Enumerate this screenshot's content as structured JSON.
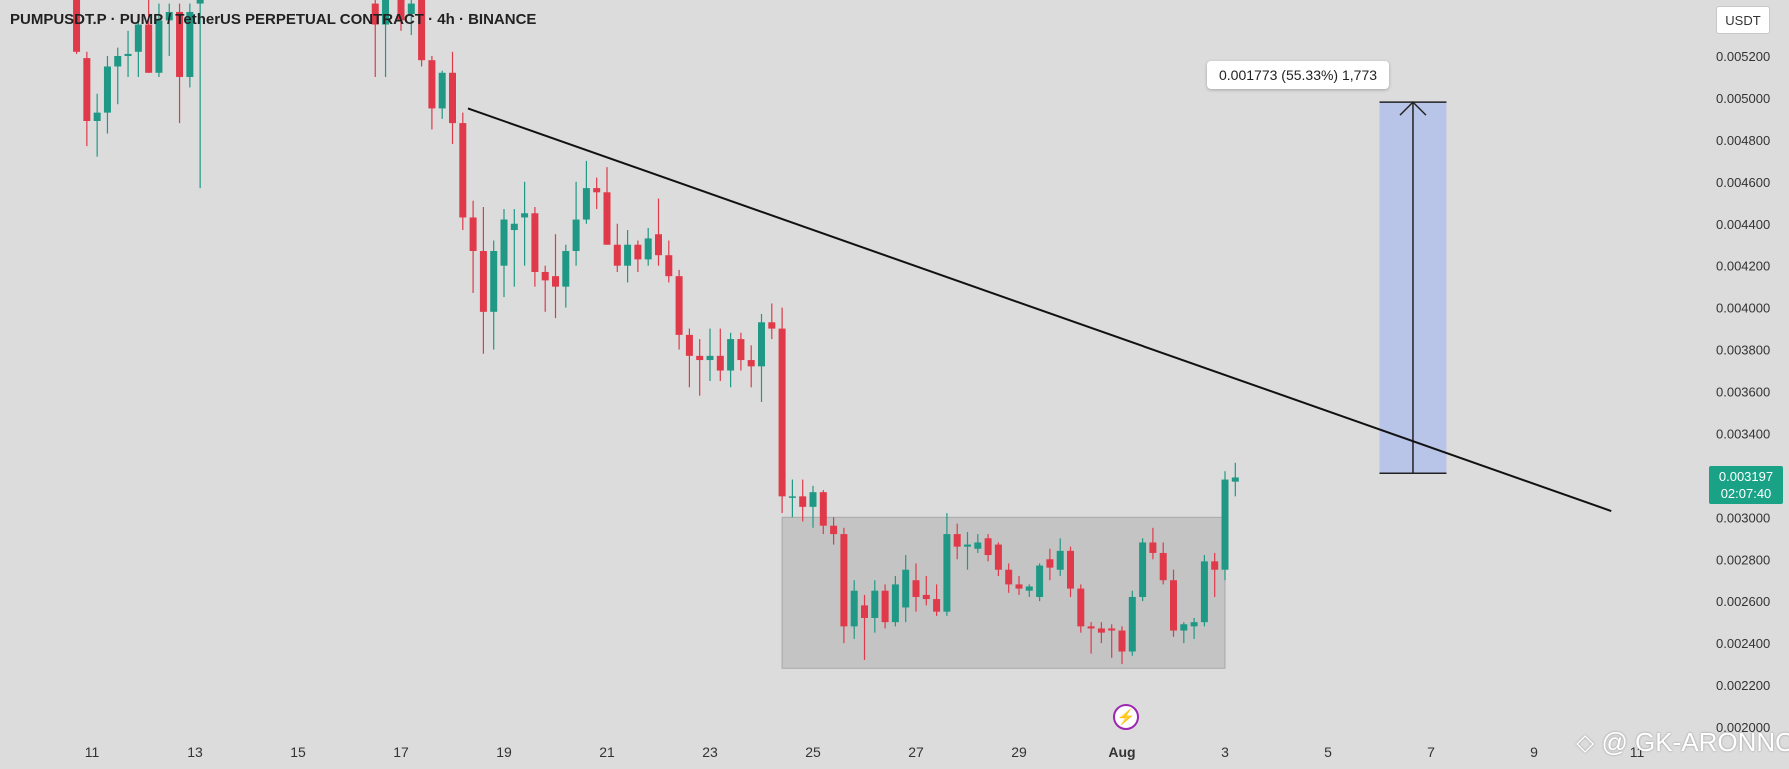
{
  "header": {
    "symbol_line": "PUMPUSDT.P · PUMP / TetherUS PERPETUAL CONTRACT · 4h · BINANCE"
  },
  "currency_button": "USDT",
  "price_tag": {
    "price": "0.003197",
    "countdown": "02:07:40"
  },
  "measure_label": "0.001773 (55.33%) 1,773",
  "watermark": "@ GK-ARONNO",
  "colors": {
    "bull": "#1f9985",
    "bear": "#e0394a",
    "background": "#dcdcdc",
    "range_box": "#c4c4c4",
    "target_box": "#b8c4e8",
    "price_tag": "#1aa287",
    "indicator_icon": "#9c27b0"
  },
  "icons": {
    "indicator": "lightning-bolt-icon",
    "watermark_logo": "binance-square-icon"
  },
  "chart_data": {
    "type": "candlestick",
    "title": "PUMPUSDT.P · PUMP / TetherUS PERPETUAL CONTRACT · 4h · BINANCE",
    "y_ticks": [
      "0.005200",
      "0.005000",
      "0.004800",
      "0.004600",
      "0.004400",
      "0.004200",
      "0.004000",
      "0.003800",
      "0.003600",
      "0.003400",
      "0.003000",
      "0.002800",
      "0.002600",
      "0.002400",
      "0.002200",
      "0.002000"
    ],
    "ylim": [
      0.002,
      0.00535
    ],
    "x_ticks": [
      "11",
      "13",
      "15",
      "17",
      "19",
      "21",
      "23",
      "25",
      "27",
      "29",
      "Aug",
      "3",
      "5",
      "7",
      "9",
      "11"
    ],
    "x_tick_days": [
      11,
      13,
      15,
      17,
      19,
      21,
      23,
      25,
      27,
      29,
      31,
      33,
      35,
      37,
      39,
      41
    ],
    "candles": [
      {
        "d": 10.7,
        "o": 0.00548,
        "h": 0.00556,
        "l": 0.00521,
        "c": 0.00522
      },
      {
        "d": 10.9,
        "o": 0.00519,
        "h": 0.00522,
        "l": 0.00477,
        "c": 0.00489
      },
      {
        "d": 11.1,
        "o": 0.00489,
        "h": 0.00502,
        "l": 0.00472,
        "c": 0.00493
      },
      {
        "d": 11.3,
        "o": 0.00493,
        "h": 0.0052,
        "l": 0.00483,
        "c": 0.00515
      },
      {
        "d": 11.5,
        "o": 0.00515,
        "h": 0.00524,
        "l": 0.00497,
        "c": 0.0052
      },
      {
        "d": 11.7,
        "o": 0.0052,
        "h": 0.00532,
        "l": 0.0051,
        "c": 0.00521
      },
      {
        "d": 11.9,
        "o": 0.00522,
        "h": 0.0054,
        "l": 0.0051,
        "c": 0.00535
      },
      {
        "d": 12.1,
        "o": 0.00535,
        "h": 0.00548,
        "l": 0.00512,
        "c": 0.00512
      },
      {
        "d": 12.3,
        "o": 0.00512,
        "h": 0.00545,
        "l": 0.0051,
        "c": 0.00537
      },
      {
        "d": 12.5,
        "o": 0.00537,
        "h": 0.00545,
        "l": 0.0052,
        "c": 0.00541
      },
      {
        "d": 12.7,
        "o": 0.00541,
        "h": 0.00545,
        "l": 0.00488,
        "c": 0.0051
      },
      {
        "d": 12.9,
        "o": 0.0051,
        "h": 0.00545,
        "l": 0.00505,
        "c": 0.00541
      },
      {
        "d": 13.1,
        "o": 0.00545,
        "h": 0.00552,
        "l": 0.00457,
        "c": 0.00548
      },
      {
        "d": 16.5,
        "o": 0.00545,
        "h": 0.00552,
        "l": 0.0051,
        "c": 0.00535
      },
      {
        "d": 16.7,
        "o": 0.00535,
        "h": 0.00552,
        "l": 0.0051,
        "c": 0.00548
      },
      {
        "d": 17.0,
        "o": 0.00548,
        "h": 0.00552,
        "l": 0.00532,
        "c": 0.00537
      },
      {
        "d": 17.2,
        "o": 0.0054,
        "h": 0.00552,
        "l": 0.0053,
        "c": 0.00545
      },
      {
        "d": 17.4,
        "o": 0.00548,
        "h": 0.00552,
        "l": 0.00515,
        "c": 0.00518
      },
      {
        "d": 17.6,
        "o": 0.00518,
        "h": 0.0052,
        "l": 0.00485,
        "c": 0.00495
      },
      {
        "d": 17.8,
        "o": 0.00495,
        "h": 0.00513,
        "l": 0.0049,
        "c": 0.00512
      },
      {
        "d": 18.0,
        "o": 0.00512,
        "h": 0.00522,
        "l": 0.00478,
        "c": 0.00488
      },
      {
        "d": 18.2,
        "o": 0.00488,
        "h": 0.00493,
        "l": 0.00437,
        "c": 0.00443
      },
      {
        "d": 18.4,
        "o": 0.00443,
        "h": 0.00451,
        "l": 0.00407,
        "c": 0.00427
      },
      {
        "d": 18.6,
        "o": 0.00427,
        "h": 0.00448,
        "l": 0.00378,
        "c": 0.00398
      },
      {
        "d": 18.8,
        "o": 0.00398,
        "h": 0.00432,
        "l": 0.0038,
        "c": 0.00427
      },
      {
        "d": 19.0,
        "o": 0.0042,
        "h": 0.00447,
        "l": 0.00405,
        "c": 0.00442
      },
      {
        "d": 19.2,
        "o": 0.00437,
        "h": 0.00447,
        "l": 0.0041,
        "c": 0.0044
      },
      {
        "d": 19.4,
        "o": 0.00443,
        "h": 0.0046,
        "l": 0.0042,
        "c": 0.00445
      },
      {
        "d": 19.6,
        "o": 0.00445,
        "h": 0.00448,
        "l": 0.0041,
        "c": 0.00417
      },
      {
        "d": 19.8,
        "o": 0.00417,
        "h": 0.0042,
        "l": 0.00398,
        "c": 0.00413
      },
      {
        "d": 20.0,
        "o": 0.00415,
        "h": 0.00435,
        "l": 0.00395,
        "c": 0.0041
      },
      {
        "d": 20.2,
        "o": 0.0041,
        "h": 0.0043,
        "l": 0.004,
        "c": 0.00427
      },
      {
        "d": 20.4,
        "o": 0.00427,
        "h": 0.0046,
        "l": 0.0042,
        "c": 0.00442
      },
      {
        "d": 20.6,
        "o": 0.00442,
        "h": 0.0047,
        "l": 0.0044,
        "c": 0.00457
      },
      {
        "d": 20.8,
        "o": 0.00457,
        "h": 0.00462,
        "l": 0.00447,
        "c": 0.00455
      },
      {
        "d": 21.0,
        "o": 0.00455,
        "h": 0.00467,
        "l": 0.0043,
        "c": 0.0043
      },
      {
        "d": 21.2,
        "o": 0.0043,
        "h": 0.0044,
        "l": 0.00417,
        "c": 0.0042
      },
      {
        "d": 21.4,
        "o": 0.0042,
        "h": 0.00437,
        "l": 0.00412,
        "c": 0.0043
      },
      {
        "d": 21.6,
        "o": 0.0043,
        "h": 0.00432,
        "l": 0.00417,
        "c": 0.00423
      },
      {
        "d": 21.8,
        "o": 0.00423,
        "h": 0.00438,
        "l": 0.0042,
        "c": 0.00433
      },
      {
        "d": 22.0,
        "o": 0.00435,
        "h": 0.00452,
        "l": 0.0042,
        "c": 0.00425
      },
      {
        "d": 22.2,
        "o": 0.00425,
        "h": 0.00432,
        "l": 0.00412,
        "c": 0.00415
      },
      {
        "d": 22.4,
        "o": 0.00415,
        "h": 0.00418,
        "l": 0.0038,
        "c": 0.00387
      },
      {
        "d": 22.6,
        "o": 0.00387,
        "h": 0.0039,
        "l": 0.00362,
        "c": 0.00377
      },
      {
        "d": 22.8,
        "o": 0.00377,
        "h": 0.00385,
        "l": 0.00358,
        "c": 0.00375
      },
      {
        "d": 23.0,
        "o": 0.00375,
        "h": 0.0039,
        "l": 0.00365,
        "c": 0.00377
      },
      {
        "d": 23.2,
        "o": 0.00377,
        "h": 0.0039,
        "l": 0.00365,
        "c": 0.0037
      },
      {
        "d": 23.4,
        "o": 0.0037,
        "h": 0.00388,
        "l": 0.00362,
        "c": 0.00385
      },
      {
        "d": 23.6,
        "o": 0.00385,
        "h": 0.00388,
        "l": 0.0037,
        "c": 0.00375
      },
      {
        "d": 23.8,
        "o": 0.00375,
        "h": 0.00382,
        "l": 0.00362,
        "c": 0.00372
      },
      {
        "d": 24.0,
        "o": 0.00372,
        "h": 0.00397,
        "l": 0.00355,
        "c": 0.00393
      },
      {
        "d": 24.2,
        "o": 0.00393,
        "h": 0.00402,
        "l": 0.00385,
        "c": 0.0039
      },
      {
        "d": 24.4,
        "o": 0.0039,
        "h": 0.004,
        "l": 0.00302,
        "c": 0.0031
      },
      {
        "d": 24.6,
        "o": 0.0031,
        "h": 0.00318,
        "l": 0.003,
        "c": 0.0031
      },
      {
        "d": 24.8,
        "o": 0.0031,
        "h": 0.00318,
        "l": 0.00298,
        "c": 0.00305
      },
      {
        "d": 25.0,
        "o": 0.00305,
        "h": 0.00315,
        "l": 0.00295,
        "c": 0.00312
      },
      {
        "d": 25.2,
        "o": 0.00312,
        "h": 0.00313,
        "l": 0.00292,
        "c": 0.00296
      },
      {
        "d": 25.4,
        "o": 0.00296,
        "h": 0.003,
        "l": 0.00287,
        "c": 0.00292
      },
      {
        "d": 25.6,
        "o": 0.00292,
        "h": 0.00295,
        "l": 0.0024,
        "c": 0.00248
      },
      {
        "d": 25.8,
        "o": 0.00248,
        "h": 0.0027,
        "l": 0.00242,
        "c": 0.00265
      },
      {
        "d": 26.0,
        "o": 0.00258,
        "h": 0.00263,
        "l": 0.00232,
        "c": 0.00252
      },
      {
        "d": 26.2,
        "o": 0.00252,
        "h": 0.0027,
        "l": 0.00245,
        "c": 0.00265
      },
      {
        "d": 26.4,
        "o": 0.00265,
        "h": 0.00268,
        "l": 0.00247,
        "c": 0.0025
      },
      {
        "d": 26.6,
        "o": 0.0025,
        "h": 0.00272,
        "l": 0.00248,
        "c": 0.00268
      },
      {
        "d": 26.8,
        "o": 0.00257,
        "h": 0.00282,
        "l": 0.0025,
        "c": 0.00275
      },
      {
        "d": 27.0,
        "o": 0.0027,
        "h": 0.00278,
        "l": 0.00255,
        "c": 0.00262
      },
      {
        "d": 27.2,
        "o": 0.00263,
        "h": 0.00272,
        "l": 0.00258,
        "c": 0.00261
      },
      {
        "d": 27.4,
        "o": 0.00261,
        "h": 0.00268,
        "l": 0.00253,
        "c": 0.00255
      },
      {
        "d": 27.6,
        "o": 0.00255,
        "h": 0.00302,
        "l": 0.00253,
        "c": 0.00292
      },
      {
        "d": 27.8,
        "o": 0.00292,
        "h": 0.00297,
        "l": 0.0028,
        "c": 0.00286
      },
      {
        "d": 28.0,
        "o": 0.00286,
        "h": 0.00293,
        "l": 0.00275,
        "c": 0.00287
      },
      {
        "d": 28.2,
        "o": 0.00285,
        "h": 0.00292,
        "l": 0.00283,
        "c": 0.00288
      },
      {
        "d": 28.4,
        "o": 0.0029,
        "h": 0.00292,
        "l": 0.00279,
        "c": 0.00282
      },
      {
        "d": 28.6,
        "o": 0.00287,
        "h": 0.00288,
        "l": 0.00272,
        "c": 0.00275
      },
      {
        "d": 28.8,
        "o": 0.00275,
        "h": 0.00278,
        "l": 0.00264,
        "c": 0.00268
      },
      {
        "d": 29.0,
        "o": 0.00268,
        "h": 0.00272,
        "l": 0.00263,
        "c": 0.00266
      },
      {
        "d": 29.2,
        "o": 0.00265,
        "h": 0.00268,
        "l": 0.00262,
        "c": 0.00267
      },
      {
        "d": 29.4,
        "o": 0.00262,
        "h": 0.00278,
        "l": 0.0026,
        "c": 0.00277
      },
      {
        "d": 29.6,
        "o": 0.0028,
        "h": 0.00285,
        "l": 0.0027,
        "c": 0.00276
      },
      {
        "d": 29.8,
        "o": 0.00275,
        "h": 0.0029,
        "l": 0.00272,
        "c": 0.00284
      },
      {
        "d": 30.0,
        "o": 0.00284,
        "h": 0.00286,
        "l": 0.00262,
        "c": 0.00266
      },
      {
        "d": 30.2,
        "o": 0.00266,
        "h": 0.00268,
        "l": 0.00245,
        "c": 0.00248
      },
      {
        "d": 30.4,
        "o": 0.00248,
        "h": 0.0025,
        "l": 0.00235,
        "c": 0.00247
      },
      {
        "d": 30.6,
        "o": 0.00247,
        "h": 0.0025,
        "l": 0.0024,
        "c": 0.00245
      },
      {
        "d": 30.8,
        "o": 0.00247,
        "h": 0.00249,
        "l": 0.00233,
        "c": 0.00246
      },
      {
        "d": 31.0,
        "o": 0.00246,
        "h": 0.00248,
        "l": 0.0023,
        "c": 0.00236
      },
      {
        "d": 31.2,
        "o": 0.00236,
        "h": 0.00265,
        "l": 0.00234,
        "c": 0.00262
      },
      {
        "d": 31.4,
        "o": 0.00262,
        "h": 0.0029,
        "l": 0.0026,
        "c": 0.00288
      },
      {
        "d": 31.6,
        "o": 0.00288,
        "h": 0.00295,
        "l": 0.0028,
        "c": 0.00283
      },
      {
        "d": 31.8,
        "o": 0.00283,
        "h": 0.00288,
        "l": 0.00268,
        "c": 0.0027
      },
      {
        "d": 32.0,
        "o": 0.0027,
        "h": 0.00275,
        "l": 0.00243,
        "c": 0.00246
      },
      {
        "d": 32.2,
        "o": 0.00246,
        "h": 0.0025,
        "l": 0.0024,
        "c": 0.00249
      },
      {
        "d": 32.4,
        "o": 0.00248,
        "h": 0.00252,
        "l": 0.00242,
        "c": 0.0025
      },
      {
        "d": 32.6,
        "o": 0.0025,
        "h": 0.00282,
        "l": 0.00248,
        "c": 0.00279
      },
      {
        "d": 32.8,
        "o": 0.00279,
        "h": 0.00283,
        "l": 0.00262,
        "c": 0.00275
      },
      {
        "d": 33.0,
        "o": 0.00275,
        "h": 0.00322,
        "l": 0.0027,
        "c": 0.00318
      },
      {
        "d": 33.2,
        "o": 0.00317,
        "h": 0.00326,
        "l": 0.0031,
        "c": 0.00319
      }
    ],
    "annotations": {
      "trendline": {
        "from": {
          "d": 18.3,
          "price": 0.00495
        },
        "to": {
          "d": 40.5,
          "price": 0.00303
        }
      },
      "range_box": {
        "d_start": 24.4,
        "d_end": 33.0,
        "price_top": 0.003,
        "price_bottom": 0.00228
      },
      "target_box": {
        "d_start": 36.0,
        "d_end": 37.3,
        "price_top": 0.00498,
        "price_bottom": 0.00321
      },
      "arrow": {
        "d": 36.65,
        "from_price": 0.00321,
        "to_price": 0.00498
      }
    }
  }
}
